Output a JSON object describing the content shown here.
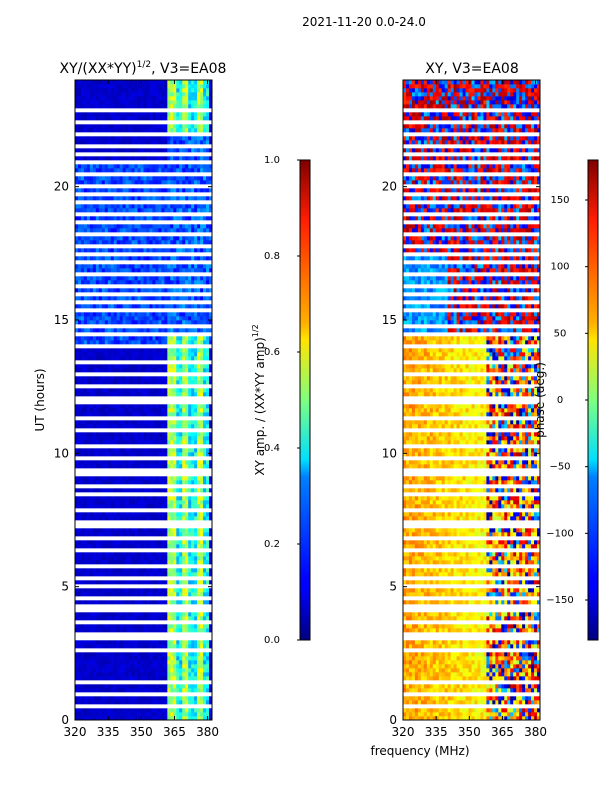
{
  "suptitle": "2021-11-20 0.0-24.0",
  "chart_data": [
    {
      "type": "heatmap",
      "title_main": "XY/(XX*YY)",
      "title_exp": "1/2",
      "title_tail": ", V3=EA08",
      "xlabel": "",
      "ylabel": "UT (hours)",
      "xlim": [
        320,
        382
      ],
      "ylim": [
        0,
        24
      ],
      "xticks": [
        320,
        335,
        350,
        365,
        380
      ],
      "yticks": [
        0,
        5,
        10,
        15,
        20
      ],
      "colorbar": {
        "label_main": "XY amp. / (XX*YY amp)",
        "label_exp": "1/2",
        "range": [
          0.0,
          1.0
        ],
        "ticks": [
          "0.0",
          "0.2",
          "0.4",
          "0.6",
          "0.8",
          "1.0"
        ]
      }
    },
    {
      "type": "heatmap",
      "title_main": "XY, V3=EA08",
      "xlabel": "frequency (MHz)",
      "ylabel": "",
      "xlim": [
        320,
        382
      ],
      "ylim": [
        0,
        24
      ],
      "xticks": [
        320,
        335,
        350,
        365,
        380
      ],
      "yticks": [
        0,
        5,
        10,
        15,
        20
      ],
      "colorbar": {
        "label_main": "phase (deg.)",
        "range": [
          -180,
          180
        ],
        "ticks": [
          "−150",
          "−100",
          "−50",
          "0",
          "50",
          "100",
          "150"
        ]
      }
    }
  ]
}
